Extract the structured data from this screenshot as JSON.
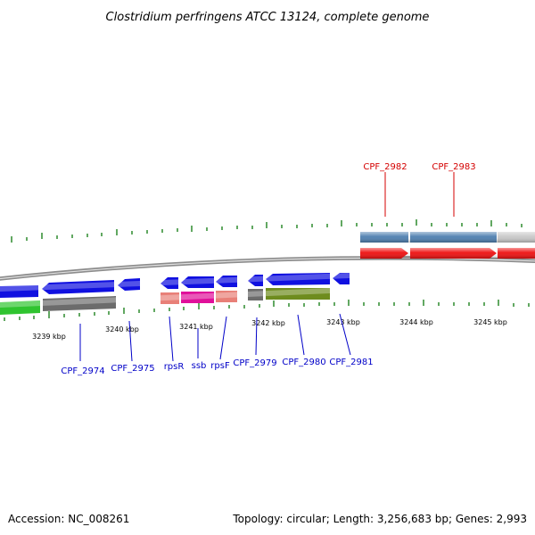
{
  "title": "Clostridium perfringens ATCC 13124, complete genome",
  "footer": {
    "accession": "Accession: NC_008261",
    "summary": "Topology: circular; Length: 3,256,683 bp; Genes: 2,993"
  },
  "colors": {
    "backbone": "#8c8c8c",
    "tick": "#2e8b2e",
    "label_blue": "#0000c8",
    "label_red": "#d40000",
    "blue_feature": "#1010e0",
    "red_feature": "#ee1010",
    "steel_feature": "#4e7fb0",
    "lightgray_feature": "#c8c8c8",
    "darkgray_feature": "#6c6c6c",
    "green_feature": "#2fc42f",
    "salmon_feature": "#e88078",
    "magenta_feature": "#e0109a",
    "olive_feature": "#6e8c1e"
  },
  "kbp_labels": [
    "3239 kbp",
    "3240 kbp",
    "3241 kbp",
    "3242 kbp",
    "3243 kbp",
    "3244 kbp",
    "3245 kbp"
  ],
  "gene_labels": {
    "top": [
      "CPF_2982",
      "CPF_2983"
    ],
    "bottom": [
      "CPF_2974",
      "CPF_2975",
      "rpsR",
      "ssb",
      "rpsF",
      "CPF_2979",
      "CPF_2980",
      "CPF_2981"
    ]
  }
}
